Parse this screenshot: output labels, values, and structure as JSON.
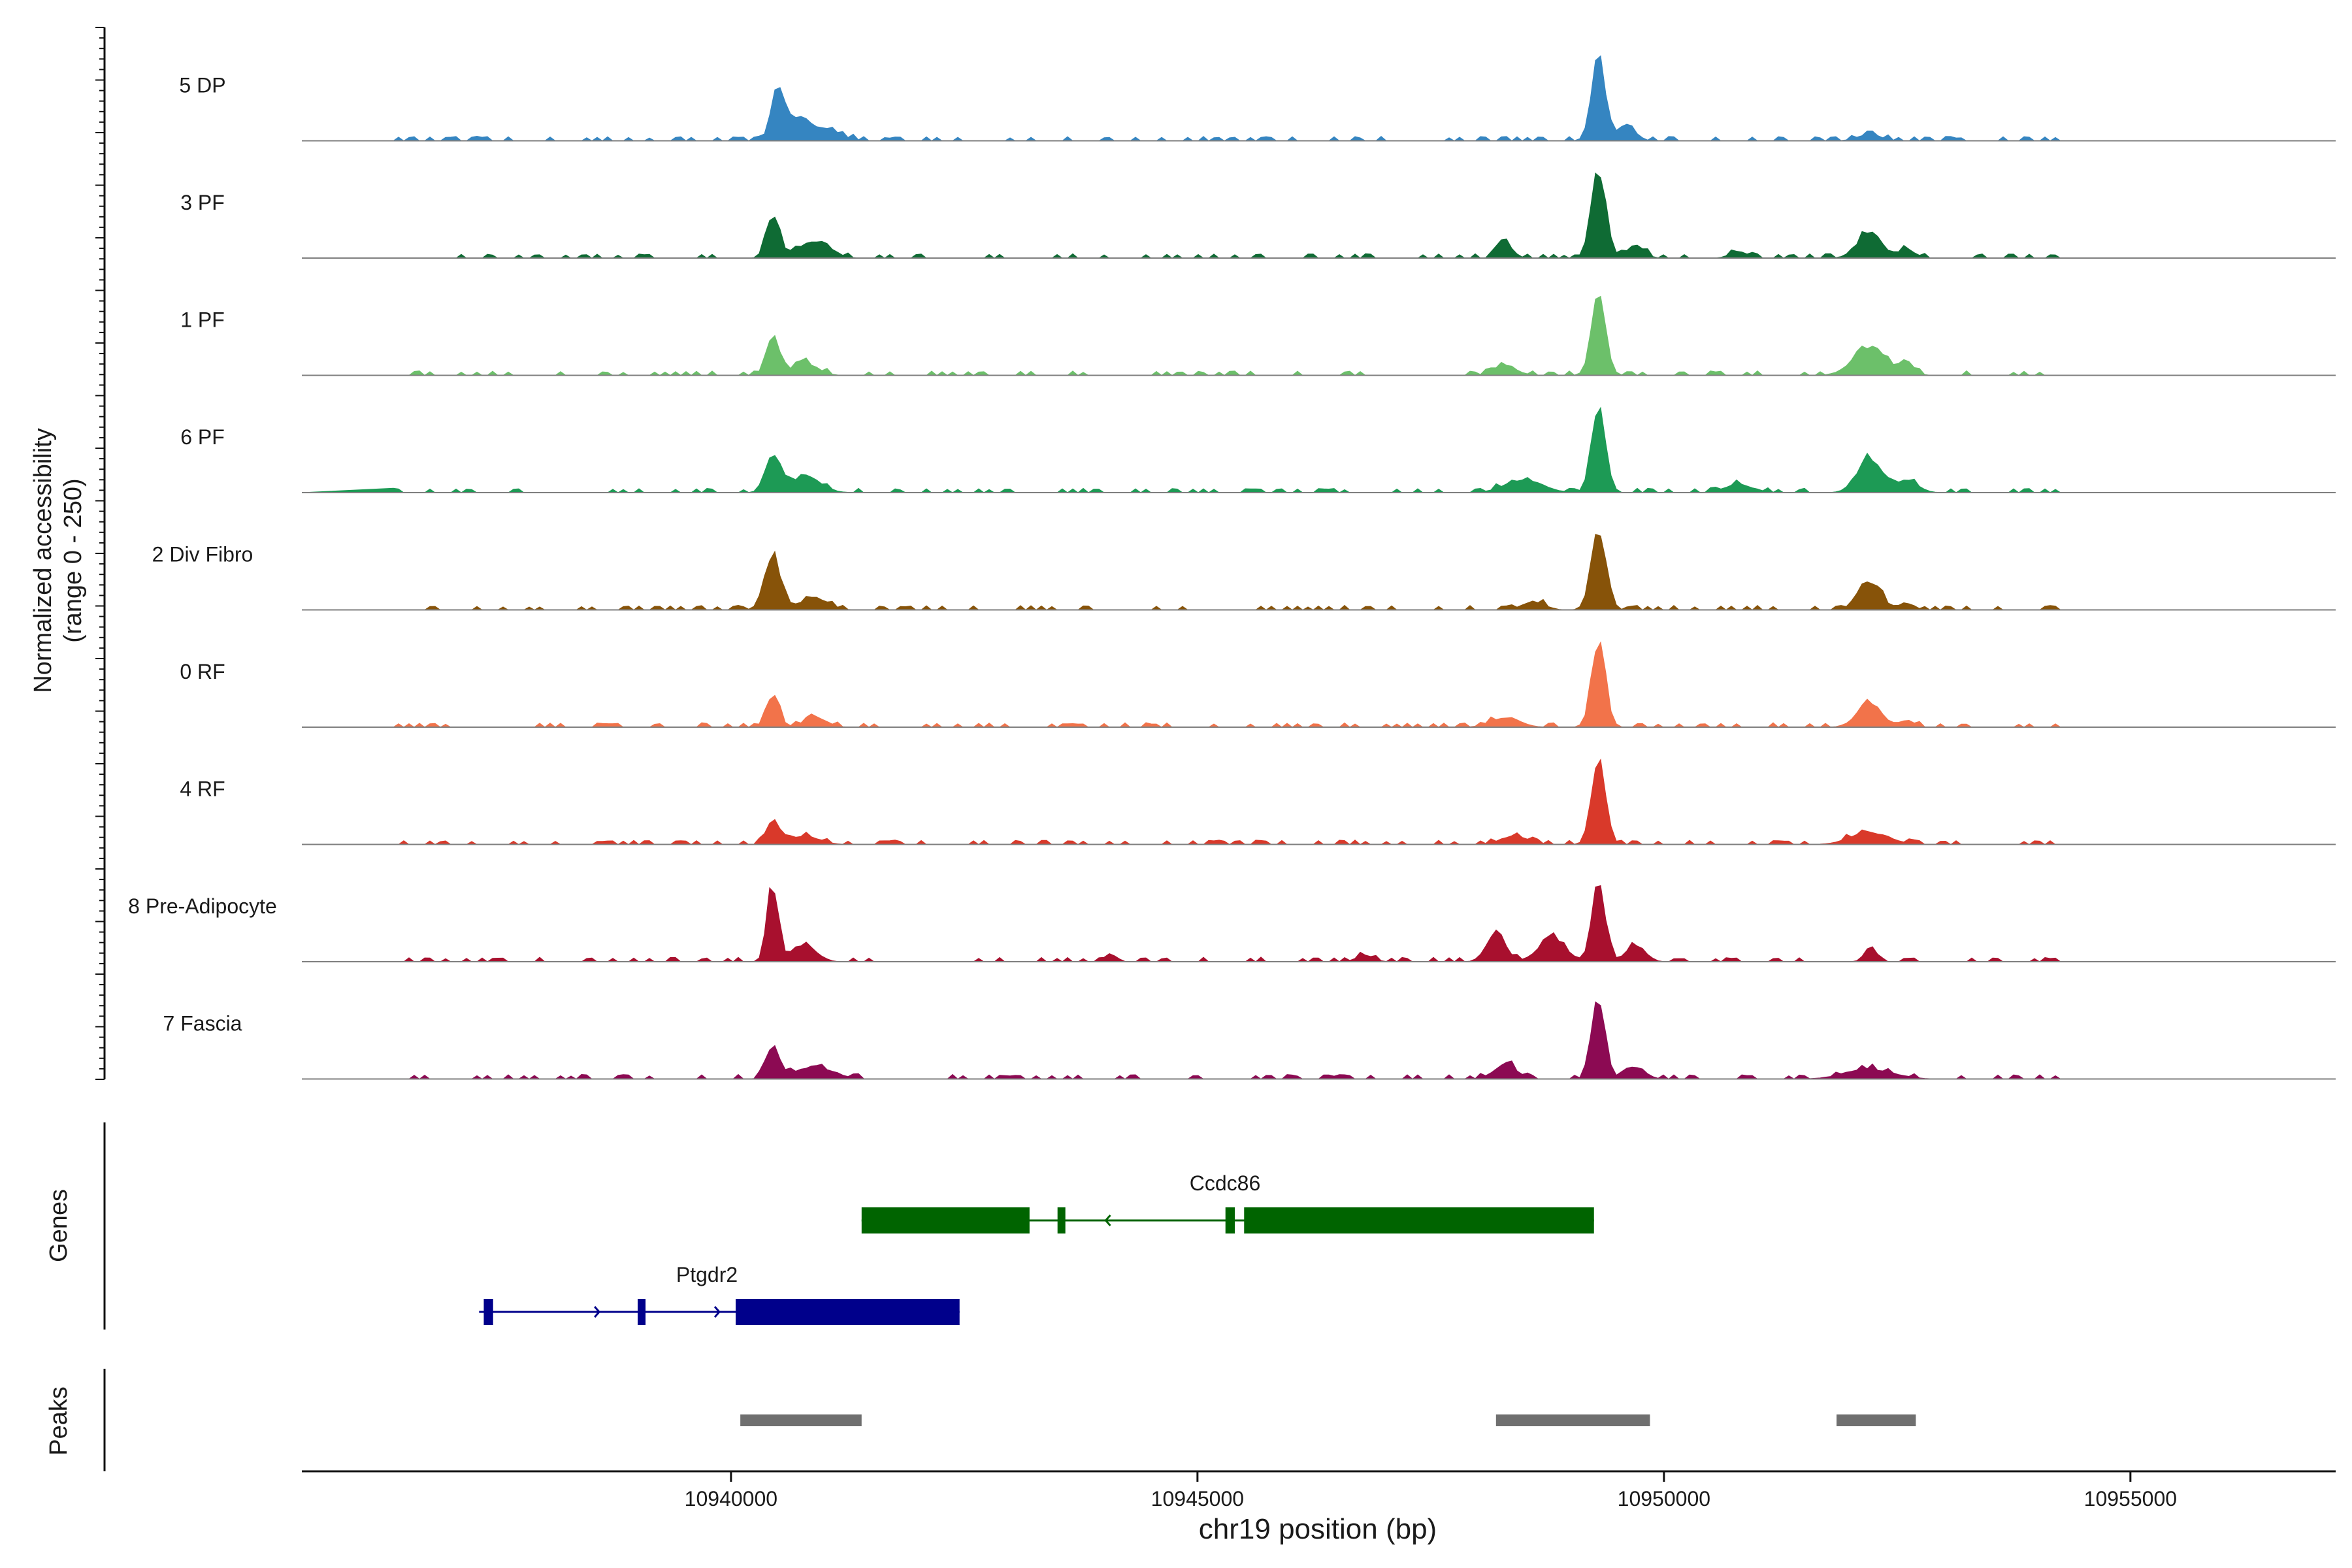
{
  "chart_data": {
    "type": "area",
    "title": "",
    "ylabel": "Normalized accessibility",
    "ylabel_range": "(range 0 - 250)",
    "xlabel": "chr19 position (bp)",
    "xlim": [
      10935400,
      10957200
    ],
    "ylim": [
      0,
      250
    ],
    "x_ticks": [
      10940000,
      10945000,
      10950000,
      10955000
    ],
    "x_tick_labels": [
      "10940000",
      "10945000",
      "10950000",
      "10955000"
    ],
    "tracks": [
      {
        "name": "5 DP",
        "color": "#3585c1",
        "peaks": [
          [
            10940500,
            0.55,
            70
          ],
          [
            10940700,
            0.25,
            120
          ],
          [
            10941000,
            0.15,
            160
          ],
          [
            10949300,
            1.0,
            75
          ],
          [
            10949600,
            0.2,
            90
          ],
          [
            10952200,
            0.08,
            120
          ]
        ]
      },
      {
        "name": "3 PF",
        "color": "#0f6b34",
        "peaks": [
          [
            10940450,
            0.5,
            70
          ],
          [
            10940900,
            0.2,
            160
          ],
          [
            10948300,
            0.18,
            80
          ],
          [
            10949300,
            1.0,
            80
          ],
          [
            10949700,
            0.15,
            90
          ],
          [
            10950800,
            0.08,
            90
          ],
          [
            10952200,
            0.3,
            130
          ],
          [
            10952600,
            0.1,
            90
          ]
        ]
      },
      {
        "name": "1 PF",
        "color": "#6cc06a",
        "peaks": [
          [
            10940450,
            0.45,
            70
          ],
          [
            10940800,
            0.15,
            130
          ],
          [
            10948300,
            0.12,
            120
          ],
          [
            10949300,
            1.0,
            75
          ],
          [
            10952200,
            0.35,
            170
          ],
          [
            10952600,
            0.15,
            80
          ]
        ]
      },
      {
        "name": "6 PF",
        "color": "#1d9a55",
        "peaks": [
          [
            10940450,
            0.45,
            80
          ],
          [
            10940800,
            0.2,
            160
          ],
          [
            10948500,
            0.15,
            200
          ],
          [
            10949300,
            1.0,
            75
          ],
          [
            10950800,
            0.1,
            150
          ],
          [
            10952200,
            0.4,
            130
          ],
          [
            10952600,
            0.15,
            120
          ]
        ]
      },
      {
        "name": "2 Div Fibro",
        "color": "#875309",
        "peaks": [
          [
            10940450,
            0.6,
            90
          ],
          [
            10940900,
            0.15,
            140
          ],
          [
            10948600,
            0.1,
            120
          ],
          [
            10949300,
            0.9,
            80
          ],
          [
            10952200,
            0.35,
            120
          ],
          [
            10952600,
            0.08,
            80
          ]
        ]
      },
      {
        "name": "0 RF",
        "color": "#f2734a",
        "peaks": [
          [
            10940450,
            0.35,
            70
          ],
          [
            10940900,
            0.12,
            120
          ],
          [
            10948300,
            0.12,
            150
          ],
          [
            10949300,
            1.0,
            75
          ],
          [
            10952200,
            0.3,
            130
          ],
          [
            10952600,
            0.08,
            80
          ]
        ]
      },
      {
        "name": "4 RF",
        "color": "#d9392a",
        "peaks": [
          [
            10940450,
            0.3,
            70
          ],
          [
            10940800,
            0.1,
            150
          ],
          [
            10948400,
            0.1,
            150
          ],
          [
            10949300,
            1.0,
            75
          ],
          [
            10952200,
            0.15,
            200
          ]
        ]
      },
      {
        "name": "8 Pre-Adipocyte",
        "color": "#a8102e",
        "peaks": [
          [
            10940450,
            0.9,
            60
          ],
          [
            10940800,
            0.2,
            120
          ],
          [
            10948200,
            0.35,
            100
          ],
          [
            10948800,
            0.3,
            140
          ],
          [
            10949300,
            1.0,
            70
          ],
          [
            10949700,
            0.2,
            100
          ],
          [
            10952200,
            0.15,
            60
          ],
          [
            10944100,
            0.08,
            50
          ],
          [
            10946800,
            0.08,
            90
          ]
        ]
      },
      {
        "name": "7 Fascia",
        "color": "#8c0a53",
        "peaks": [
          [
            10940450,
            0.4,
            70
          ],
          [
            10940900,
            0.15,
            200
          ],
          [
            10948300,
            0.18,
            120
          ],
          [
            10949300,
            1.0,
            70
          ],
          [
            10949700,
            0.15,
            100
          ],
          [
            10952200,
            0.12,
            250
          ]
        ]
      }
    ],
    "genes_label": "Genes",
    "genes": [
      {
        "name": "Ccdc86",
        "color": "#006400",
        "start": 10941400,
        "end": 10949250,
        "strand": "-",
        "exons": [
          [
            10941400,
            10943200
          ],
          [
            10943500,
            10943550
          ],
          [
            10945300,
            10945400
          ],
          [
            10945500,
            10949250
          ]
        ]
      },
      {
        "name": "Ptgdr2",
        "color": "#00008b",
        "start": 10937300,
        "end": 10942450,
        "strand": "+",
        "exons": [
          [
            10937350,
            10937450
          ],
          [
            10939000,
            10939080
          ],
          [
            10940050,
            10942450
          ]
        ]
      }
    ],
    "peaks_label": "Peaks",
    "peak_regions": [
      [
        10940100,
        10941400
      ],
      [
        10948200,
        10949850
      ],
      [
        10951850,
        10952700
      ]
    ]
  }
}
